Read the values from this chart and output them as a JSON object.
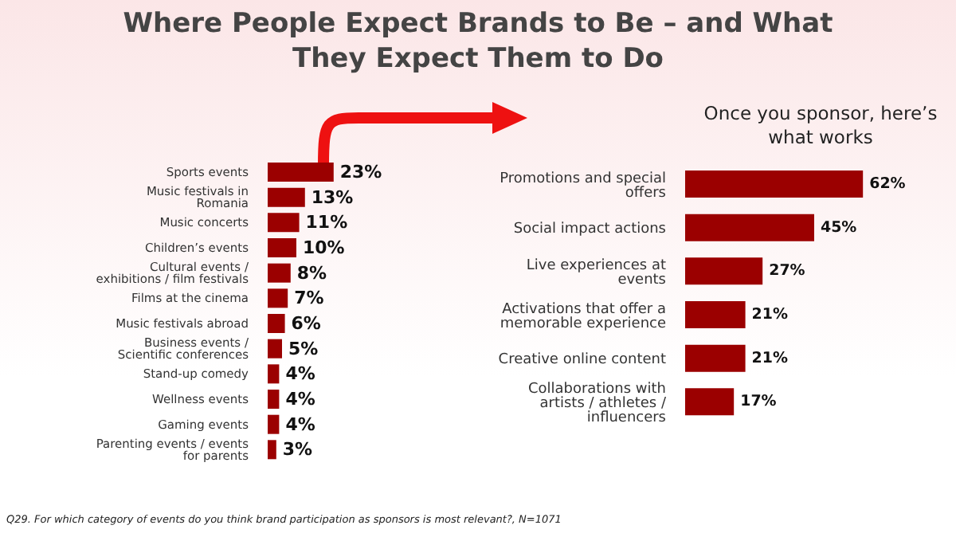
{
  "chart_data": [
    {
      "type": "bar",
      "orientation": "horizontal",
      "title": "Where People Expect Brands to Be – and What They Expect Them to Do",
      "categories": [
        "Sports events",
        "Music festivals in Romania",
        "Music concerts",
        "Children’s events",
        "Cultural events / exhibitions / film festivals",
        "Films at the cinema",
        "Music festivals abroad",
        "Business events / Scientific conferences",
        "Stand-up comedy",
        "Wellness events",
        "Gaming events",
        "Parenting events / events for parents"
      ],
      "values": [
        23,
        13,
        11,
        10,
        8,
        7,
        6,
        5,
        4,
        4,
        4,
        3
      ],
      "color": "#9b0000",
      "data_labels": true,
      "value_labels": [
        "23%",
        "13%",
        "11%",
        "10%",
        "8%",
        "7%",
        "6%",
        "5%",
        "4%",
        "4%",
        "4%",
        "3%"
      ],
      "annotations": [
        "Q29. For which category of events do you think brand participation as sponsors is most relevant?, N=1071"
      ]
    },
    {
      "type": "bar",
      "orientation": "horizontal",
      "title": "Once you sponsor, here’s what works",
      "categories": [
        "Promotions and special offers",
        "Social impact actions",
        "Live experiences at events",
        "Activations that offer a memorable experience",
        "Creative online content",
        "Collaborations with artists / athletes / influencers"
      ],
      "values": [
        62,
        45,
        27,
        21,
        21,
        17
      ],
      "color": "#9b0000",
      "data_labels": true,
      "value_labels": [
        "62%",
        "45%",
        "27%",
        "21%",
        "21%",
        "17%"
      ]
    }
  ]
}
